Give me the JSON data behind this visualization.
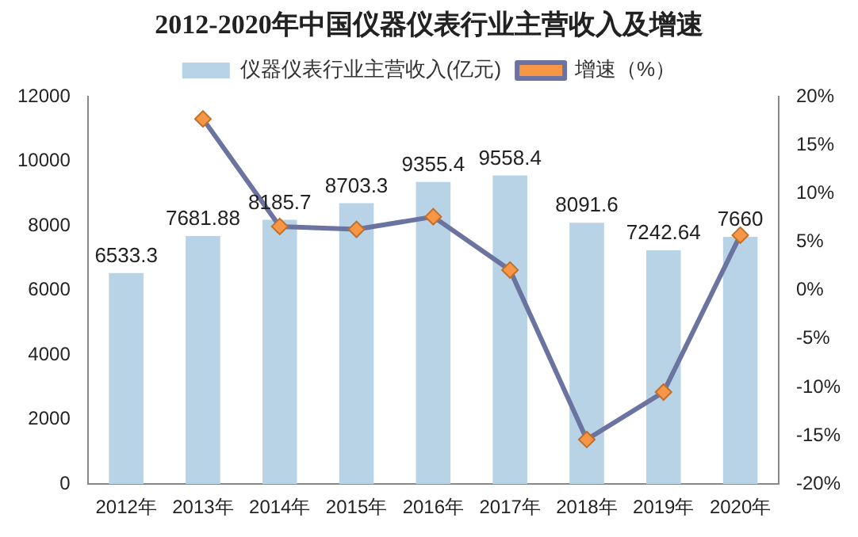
{
  "chart_data": {
    "type": "bar",
    "title": "2012-2020年中国仪器仪表行业主营收入及增速",
    "categories": [
      "2012年",
      "2013年",
      "2014年",
      "2015年",
      "2016年",
      "2017年",
      "2018年",
      "2019年",
      "2020年"
    ],
    "series": [
      {
        "name": "仪器仪表行业主营收入(亿元)",
        "color": "#b7d3e5",
        "values": [
          6533.3,
          7681.88,
          8185.7,
          8703.3,
          9355.4,
          9558.4,
          8091.6,
          7242.64,
          7660
        ],
        "data_labels": true
      },
      {
        "name": "增速（%）",
        "type": "line",
        "axis": "y2",
        "color": "#6b74a0",
        "marker": "diamond",
        "values": [
          null,
          17.7,
          6.6,
          6.3,
          7.6,
          2.1,
          -15.4,
          -10.5,
          5.7
        ]
      }
    ],
    "ylim": [
      0,
      12000
    ],
    "yticks": [
      0,
      2000,
      4000,
      6000,
      8000,
      10000,
      12000
    ],
    "y2lim": [
      -20,
      20
    ],
    "y2ticks": [
      {
        "value": -20,
        "label": "-20%"
      },
      {
        "value": -15,
        "label": "-15%"
      },
      {
        "value": -10,
        "label": "-10%"
      },
      {
        "value": -5,
        "label": "-5%"
      },
      {
        "value": 0,
        "label": "0%"
      },
      {
        "value": 5,
        "label": "5%"
      },
      {
        "value": 10,
        "label": "10%"
      },
      {
        "value": 15,
        "label": "15%"
      },
      {
        "value": 20,
        "label": "20%"
      }
    ],
    "grid": false,
    "legend": "top"
  }
}
